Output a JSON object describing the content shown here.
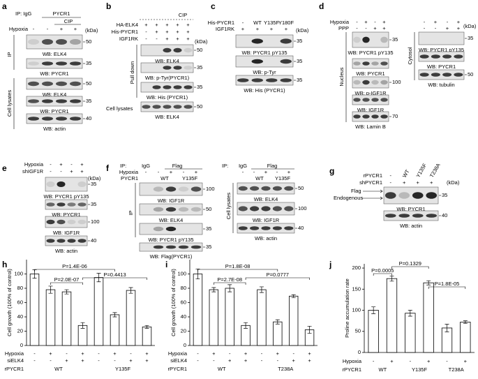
{
  "panels": [
    {
      "texts": [
        "a",
        "IP: IgG",
        "PYCR1",
        "CIP",
        "Hypoxia",
        "-",
        "-",
        "+",
        "+",
        "(kDa)",
        "IP",
        "Cell lysates"
      ],
      "blots": [
        {
          "label": "WB: ELK4",
          "markers": [
            "50"
          ]
        },
        {
          "label": "WB: PYCR1",
          "markers": [
            "35"
          ]
        },
        {
          "label": "WB: ELK4",
          "markers": [
            "50"
          ]
        },
        {
          "label": "WB: PYCR1",
          "markers": [
            "35"
          ]
        },
        {
          "label": "WB: actin",
          "markers": [
            "40"
          ]
        }
      ]
    },
    {
      "texts": [
        "b",
        "HA-ELK4",
        "+",
        "+",
        "+",
        "+",
        "+",
        "CIP",
        "His-PYCR1",
        "-",
        "+",
        "+",
        "+",
        "+",
        "IGF1RK",
        "-",
        "-",
        "+",
        "+",
        "+",
        "(kDa)",
        "Pull down",
        "Cell lysates"
      ],
      "blots": [
        {
          "label": "WB: ELK4",
          "markers": [
            "50"
          ]
        },
        {
          "label": "WB: p-Tyr(PYCR1)",
          "markers": [
            "35"
          ]
        },
        {
          "label": "WB: His (PYCR1)",
          "markers": [
            "35"
          ]
        },
        {
          "label": "WB: ELK4",
          "markers": [
            "50"
          ]
        }
      ]
    },
    {
      "texts": [
        "c",
        "His-PYCR1",
        "-",
        "WT",
        "Y135F",
        "Y180F",
        "IGF1RK",
        "+",
        "+",
        "+",
        "+",
        "(kDa)"
      ],
      "blots": [
        {
          "label": "WB: PYCR1 pY135",
          "markers": [
            "35"
          ]
        },
        {
          "label": "WB: p-Tyr",
          "markers": [
            "35"
          ]
        },
        {
          "label": "WB: His (PYCR1)",
          "markers": [
            "35"
          ]
        }
      ]
    },
    {
      "texts": [
        "d",
        "Hypoxia",
        "-",
        "+",
        "-",
        "+",
        "PPP",
        "-",
        "-",
        "+",
        "+",
        "-",
        "+",
        "-",
        "+",
        "-",
        "-",
        "+",
        "+",
        "(kDa)",
        "Nucleus",
        "Cytosol"
      ],
      "blots": [
        {
          "label": "WB: PYCR1 pY135",
          "markers": [
            "35"
          ]
        },
        {
          "label": "WB: PYCR1"
        },
        {
          "label": "WB: p-IGF1R",
          "markers": [
            "100"
          ]
        },
        {
          "label": "WB: IGF1R"
        },
        {
          "label": "WB: Lamin B",
          "markers": [
            "70"
          ]
        },
        {
          "label": "WB: PYCR1 pY135",
          "markers": [
            "35"
          ]
        },
        {
          "label": "WB: PYCR1"
        },
        {
          "label": "WB: tubulin",
          "markers": [
            "50"
          ]
        }
      ]
    },
    {
      "texts": [
        "e",
        "Hypoxia",
        "-",
        "+",
        "-",
        "+",
        "shIGF1R",
        "-",
        "-",
        "+",
        "+",
        "(kDa)"
      ],
      "blots": [
        {
          "label": "WB: PYCR1 pY135",
          "markers": [
            "35"
          ]
        },
        {
          "label": "WB: PYCR1",
          "markers": [
            "35"
          ]
        },
        {
          "label": "WB: IGF1R",
          "markers": [
            "100"
          ]
        },
        {
          "label": "WB: actin",
          "markers": [
            "40"
          ]
        }
      ]
    },
    {
      "texts": [
        "f",
        "IP:",
        "IgG",
        "Flag",
        "Hypoxia",
        "-",
        "-",
        "+",
        "-",
        "+",
        "PYCR1",
        "WT",
        "Y135F",
        "IP",
        "IP:",
        "IgG",
        "Flag",
        "-",
        "-",
        "+",
        "-",
        "+",
        "WT",
        "Y135F",
        "Cell lysates"
      ],
      "blots": [
        {
          "label": "WB: IGF1R",
          "markers": [
            "100"
          ]
        },
        {
          "label": "WB: ELK4",
          "markers": [
            "50"
          ]
        },
        {
          "label": "WB: PYCR1 pY135",
          "markers": [
            "35"
          ]
        },
        {
          "label": "WB: Flag(PYCR1)",
          "markers": [
            "35"
          ]
        },
        {
          "label": "WB: ELK4",
          "markers": [
            "50"
          ]
        },
        {
          "label": "WB: IGF1R",
          "markers": [
            "100"
          ]
        },
        {
          "label": "WB: actin",
          "markers": [
            "40"
          ]
        }
      ]
    },
    {
      "texts": [
        "g",
        "rPYCR1",
        "-",
        "WT",
        "Y135F",
        "T238A",
        "shPYCR1",
        "-",
        "+",
        "+",
        "+",
        "(kDa)",
        "Flag",
        "Endogenous"
      ],
      "blots": [
        {
          "label": "WB: PYCR1",
          "markers": [
            "35"
          ]
        },
        {
          "label": "WB: actin",
          "markers": [
            "40"
          ]
        }
      ]
    }
  ],
  "chart_data": [
    {
      "type": "bar",
      "panel": "h",
      "y_label": "Cell growth (100% of control)",
      "color": "#ffffff",
      "values": [
        100,
        78,
        75,
        28,
        95,
        43,
        77,
        26
      ],
      "errors": [
        6,
        5,
        3,
        4,
        6,
        3,
        4,
        2
      ],
      "ylim": [
        0,
        120
      ],
      "yticks": [
        0,
        20,
        40,
        60,
        80,
        100
      ],
      "rows": [
        {
          "label": "Hypoxia",
          "values": [
            "-",
            "+",
            "-",
            "+",
            "-",
            "+",
            "-",
            "+"
          ]
        },
        {
          "label": "siELK4",
          "values": [
            "-",
            "-",
            "+",
            "+",
            "-",
            "-",
            "+",
            "+"
          ]
        }
      ],
      "groups": {
        "label": "rPYCR1",
        "names": [
          "WT",
          "Y135F"
        ]
      },
      "annotations": [
        "P=1.4E-06",
        "P=2.0E-07",
        "P=0.4413"
      ]
    },
    {
      "type": "bar",
      "panel": "i",
      "y_label": "Cell growth (100% of control)",
      "color": "#ffffff",
      "values": [
        100,
        78,
        80,
        28,
        78,
        33,
        69,
        22
      ],
      "errors": [
        7,
        3,
        5,
        4,
        4,
        3,
        2,
        5
      ],
      "ylim": [
        0,
        120
      ],
      "yticks": [
        0,
        20,
        40,
        60,
        80,
        100
      ],
      "rows": [
        {
          "label": "Hypoxia",
          "values": [
            "-",
            "+",
            "-",
            "+",
            "-",
            "+",
            "-",
            "+"
          ]
        },
        {
          "label": "siELK4",
          "values": [
            "-",
            "-",
            "+",
            "+",
            "-",
            "-",
            "+",
            "+"
          ]
        }
      ],
      "groups": {
        "label": "rPYCR1",
        "names": [
          "WT",
          "T238A"
        ]
      },
      "annotations": [
        "P=1.8E-08",
        "P=2.7E-08",
        "P=0.0777"
      ]
    },
    {
      "type": "bar",
      "panel": "j",
      "y_label": "Proline accumulation rate",
      "color": "#ffffff",
      "values": [
        100,
        175,
        93,
        165,
        58,
        72
      ],
      "errors": [
        8,
        6,
        7,
        5,
        9,
        3
      ],
      "ylim": [
        0,
        210
      ],
      "yticks": [
        0,
        50,
        100,
        150,
        200
      ],
      "rows": [
        {
          "label": "Hypoxia",
          "values": [
            "-",
            "+",
            "-",
            "+",
            "-",
            "+"
          ]
        }
      ],
      "groups": {
        "label": "rPYCR1",
        "names": [
          "WT",
          "Y135F",
          "T238A"
        ]
      },
      "annotations": [
        "P=0.0005",
        "P=0.1329",
        "P=1.8E-05"
      ]
    }
  ]
}
